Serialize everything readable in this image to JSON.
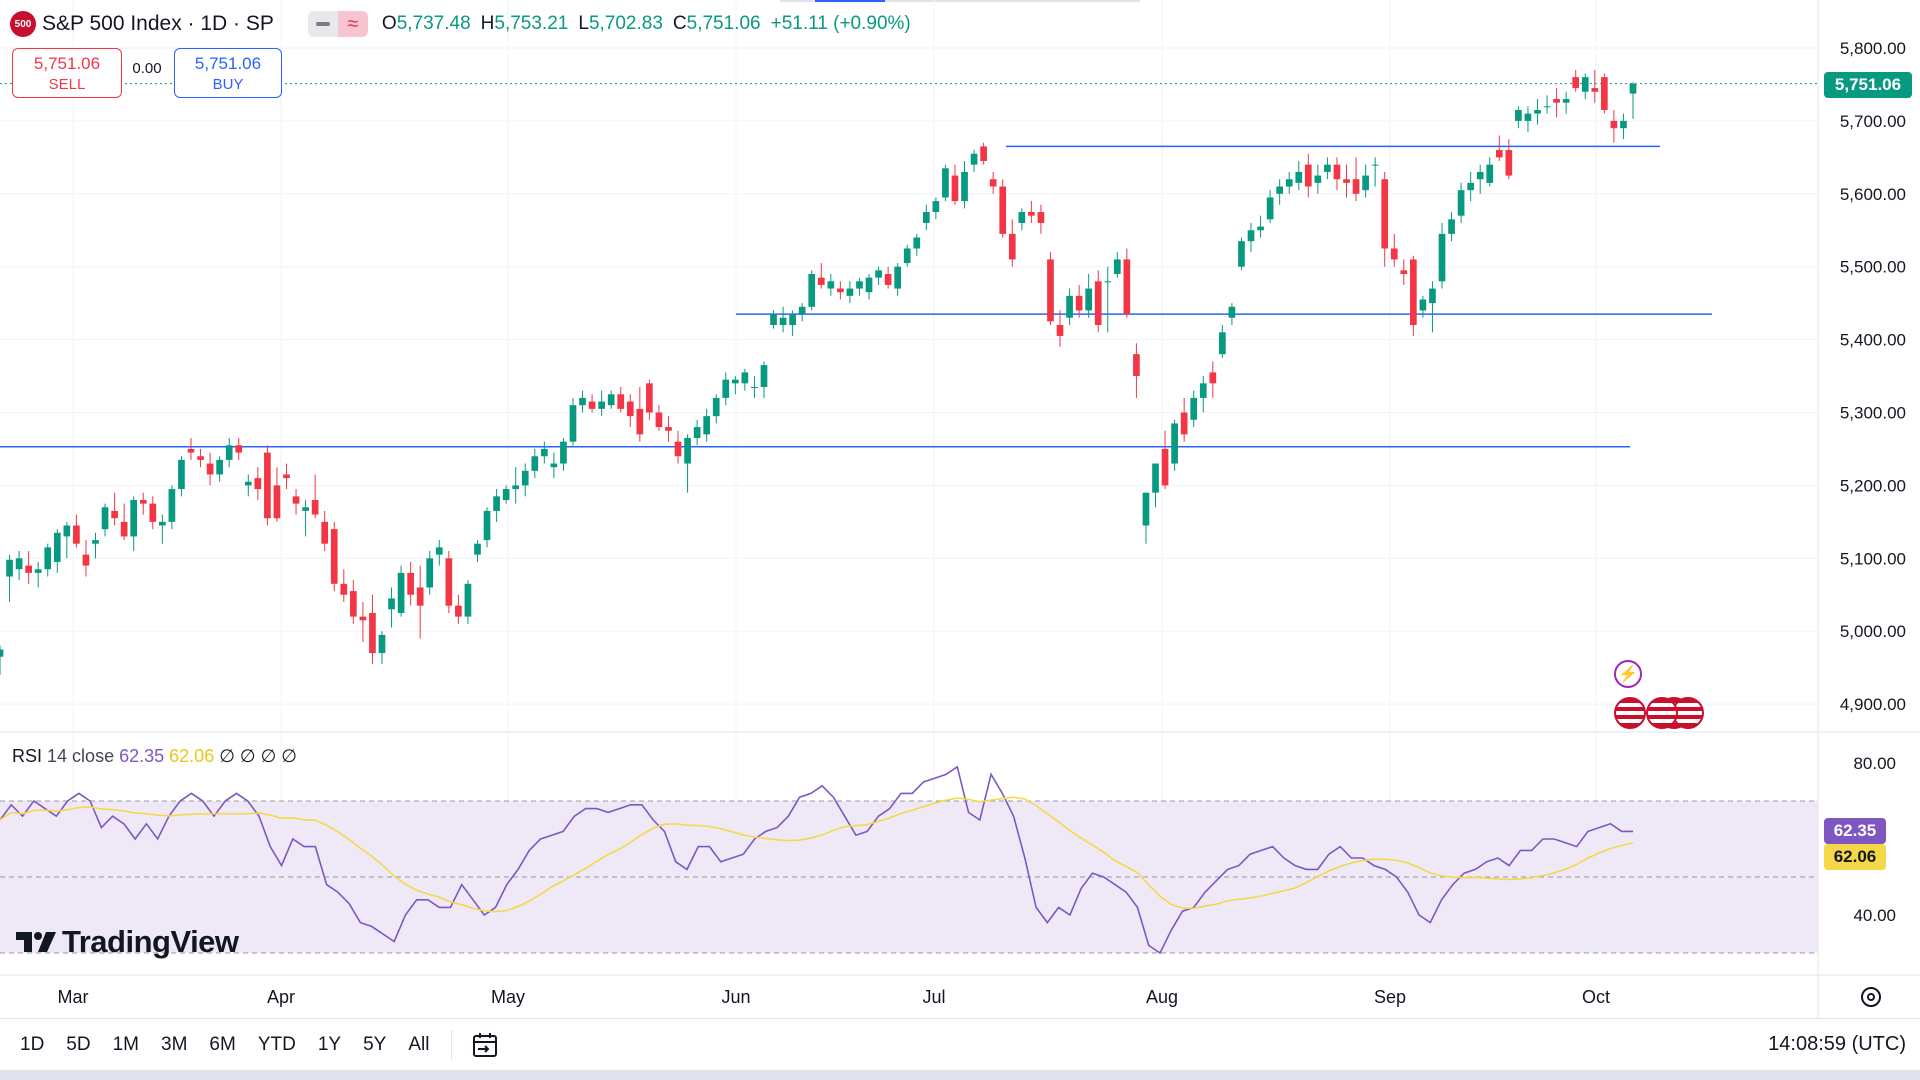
{
  "header": {
    "logo_text": "500",
    "title": "S&P 500 Index · 1D · SP",
    "ohlc": [
      {
        "k": "O",
        "v": "5,737.48"
      },
      {
        "k": "H",
        "v": "5,753.21"
      },
      {
        "k": "L",
        "v": "5,702.83"
      },
      {
        "k": "C",
        "v": "5,751.06"
      },
      {
        "k": "",
        "v": "+51.11 (+0.90%)"
      }
    ]
  },
  "trade": {
    "sell_price": "5,751.06",
    "sell_label": "SELL",
    "spread": "0.00",
    "buy_price": "5,751.06",
    "buy_label": "BUY"
  },
  "price_axis": {
    "labels": [
      "5,800.00",
      "5,700.00",
      "5,600.00",
      "5,500.00",
      "5,400.00",
      "5,300.00",
      "5,200.00",
      "5,100.00",
      "5,000.00",
      "4,900.00"
    ],
    "last_price_label": "5,751.06"
  },
  "rsi": {
    "name": "RSI",
    "params": "14 close",
    "rsi_value": "62.35",
    "ma_value": "62.06",
    "extra": "∅ ∅ ∅ ∅",
    "axis_labels": [
      "80.00",
      "40.00"
    ],
    "rsi_tag": "62.35",
    "ma_tag": "62.06"
  },
  "time_axis": {
    "labels": [
      "Mar",
      "Apr",
      "May",
      "Jun",
      "Jul",
      "Aug",
      "Sep",
      "Oct"
    ]
  },
  "brand": "TradingView",
  "bottom_bar": {
    "timeframes": [
      "1D",
      "5D",
      "1M",
      "3M",
      "6M",
      "YTD",
      "1Y",
      "5Y",
      "All"
    ],
    "clock": "14:08:59 (UTC)"
  },
  "colors": {
    "up": "#089981",
    "down": "#f23645",
    "hline": "#2962ff",
    "rsi": "#7e57c2",
    "rsi_ma": "#f5d848",
    "rsi_band": "#ede7f6"
  },
  "chart_data": {
    "type": "candlestick",
    "title": "S&P 500 Index · 1D · SP",
    "ylim": [
      4850,
      5850
    ],
    "y_ticks": [
      4900,
      5000,
      5100,
      5200,
      5300,
      5400,
      5500,
      5600,
      5700,
      5800
    ],
    "last_price": 5751.06,
    "horizontal_lines": [
      5253,
      5435,
      5665
    ],
    "x_labels": [
      "Mar",
      "Apr",
      "May",
      "Jun",
      "Jul",
      "Aug",
      "Sep",
      "Oct"
    ],
    "ohlc": [
      [
        4965,
        4980,
        4940,
        4975
      ],
      [
        5075,
        5105,
        5040,
        5098
      ],
      [
        5085,
        5110,
        5070,
        5100
      ],
      [
        5090,
        5110,
        5065,
        5080
      ],
      [
        5080,
        5095,
        5060,
        5085
      ],
      [
        5085,
        5120,
        5075,
        5115
      ],
      [
        5095,
        5140,
        5080,
        5135
      ],
      [
        5130,
        5150,
        5100,
        5145
      ],
      [
        5145,
        5160,
        5115,
        5120
      ],
      [
        5105,
        5125,
        5075,
        5090
      ],
      [
        5120,
        5135,
        5100,
        5125
      ],
      [
        5140,
        5175,
        5130,
        5170
      ],
      [
        5165,
        5190,
        5145,
        5155
      ],
      [
        5150,
        5175,
        5125,
        5130
      ],
      [
        5130,
        5185,
        5110,
        5180
      ],
      [
        5180,
        5190,
        5160,
        5175
      ],
      [
        5175,
        5185,
        5140,
        5150
      ],
      [
        5145,
        5160,
        5120,
        5150
      ],
      [
        5150,
        5200,
        5140,
        5195
      ],
      [
        5195,
        5240,
        5185,
        5235
      ],
      [
        5250,
        5265,
        5235,
        5245
      ],
      [
        5240,
        5250,
        5225,
        5235
      ],
      [
        5230,
        5245,
        5200,
        5215
      ],
      [
        5215,
        5240,
        5205,
        5235
      ],
      [
        5235,
        5265,
        5225,
        5255
      ],
      [
        5255,
        5265,
        5235,
        5245
      ],
      [
        5200,
        5215,
        5185,
        5205
      ],
      [
        5210,
        5225,
        5180,
        5195
      ],
      [
        5245,
        5255,
        5145,
        5155
      ],
      [
        5200,
        5225,
        5150,
        5155
      ],
      [
        5215,
        5230,
        5195,
        5210
      ],
      [
        5185,
        5195,
        5160,
        5175
      ],
      [
        5165,
        5180,
        5130,
        5170
      ],
      [
        5180,
        5215,
        5155,
        5160
      ],
      [
        5150,
        5165,
        5110,
        5120
      ],
      [
        5140,
        5150,
        5055,
        5065
      ],
      [
        5065,
        5085,
        5040,
        5050
      ],
      [
        5055,
        5070,
        5010,
        5020
      ],
      [
        5020,
        5040,
        4985,
        5015
      ],
      [
        5025,
        5050,
        4955,
        4970
      ],
      [
        4970,
        5000,
        4955,
        4995
      ],
      [
        5030,
        5060,
        5005,
        5045
      ],
      [
        5025,
        5090,
        5020,
        5080
      ],
      [
        5080,
        5095,
        5035,
        5050
      ],
      [
        5060,
        5090,
        4990,
        5035
      ],
      [
        5060,
        5110,
        5050,
        5100
      ],
      [
        5105,
        5125,
        5090,
        5115
      ],
      [
        5100,
        5110,
        5025,
        5035
      ],
      [
        5035,
        5050,
        5010,
        5020
      ],
      [
        5020,
        5070,
        5010,
        5065
      ],
      [
        5105,
        5125,
        5095,
        5120
      ],
      [
        5125,
        5170,
        5115,
        5165
      ],
      [
        5165,
        5195,
        5150,
        5185
      ],
      [
        5180,
        5200,
        5175,
        5195
      ],
      [
        5195,
        5225,
        5175,
        5200
      ],
      [
        5200,
        5230,
        5185,
        5220
      ],
      [
        5220,
        5250,
        5210,
        5240
      ],
      [
        5240,
        5260,
        5230,
        5250
      ],
      [
        5225,
        5245,
        5210,
        5230
      ],
      [
        5230,
        5265,
        5220,
        5260
      ],
      [
        5260,
        5320,
        5255,
        5310
      ],
      [
        5310,
        5330,
        5300,
        5320
      ],
      [
        5315,
        5325,
        5300,
        5305
      ],
      [
        5305,
        5330,
        5295,
        5315
      ],
      [
        5310,
        5330,
        5305,
        5325
      ],
      [
        5325,
        5335,
        5300,
        5305
      ],
      [
        5315,
        5325,
        5280,
        5295
      ],
      [
        5305,
        5335,
        5260,
        5270
      ],
      [
        5340,
        5345,
        5290,
        5300
      ],
      [
        5300,
        5310,
        5275,
        5280
      ],
      [
        5280,
        5295,
        5260,
        5275
      ],
      [
        5260,
        5275,
        5230,
        5240
      ],
      [
        5230,
        5270,
        5190,
        5265
      ],
      [
        5265,
        5290,
        5255,
        5280
      ],
      [
        5270,
        5305,
        5260,
        5295
      ],
      [
        5295,
        5325,
        5285,
        5320
      ],
      [
        5320,
        5355,
        5310,
        5345
      ],
      [
        5340,
        5350,
        5325,
        5345
      ],
      [
        5340,
        5360,
        5330,
        5355
      ],
      [
        5335,
        5350,
        5320,
        5335
      ],
      [
        5335,
        5370,
        5320,
        5365
      ],
      [
        5420,
        5440,
        5415,
        5435
      ],
      [
        5420,
        5445,
        5410,
        5430
      ],
      [
        5420,
        5440,
        5405,
        5435
      ],
      [
        5435,
        5450,
        5425,
        5445
      ],
      [
        5445,
        5495,
        5440,
        5490
      ],
      [
        5485,
        5505,
        5470,
        5475
      ],
      [
        5470,
        5490,
        5460,
        5480
      ],
      [
        5470,
        5480,
        5455,
        5465
      ],
      [
        5460,
        5480,
        5450,
        5470
      ],
      [
        5470,
        5485,
        5460,
        5480
      ],
      [
        5465,
        5490,
        5455,
        5485
      ],
      [
        5485,
        5500,
        5475,
        5495
      ],
      [
        5490,
        5500,
        5470,
        5475
      ],
      [
        5470,
        5505,
        5460,
        5500
      ],
      [
        5505,
        5530,
        5500,
        5525
      ],
      [
        5525,
        5545,
        5515,
        5540
      ],
      [
        5560,
        5585,
        5550,
        5575
      ],
      [
        5575,
        5595,
        5565,
        5590
      ],
      [
        5595,
        5640,
        5590,
        5635
      ],
      [
        5625,
        5640,
        5585,
        5590
      ],
      [
        5590,
        5645,
        5580,
        5630
      ],
      [
        5640,
        5660,
        5630,
        5655
      ],
      [
        5665,
        5670,
        5640,
        5645
      ],
      [
        5620,
        5630,
        5600,
        5610
      ],
      [
        5610,
        5620,
        5540,
        5545
      ],
      [
        5545,
        5565,
        5500,
        5510
      ],
      [
        5560,
        5580,
        5550,
        5575
      ],
      [
        5575,
        5590,
        5560,
        5570
      ],
      [
        5575,
        5585,
        5545,
        5560
      ],
      [
        5510,
        5520,
        5420,
        5425
      ],
      [
        5420,
        5440,
        5390,
        5405
      ],
      [
        5430,
        5470,
        5420,
        5460
      ],
      [
        5460,
        5475,
        5430,
        5440
      ],
      [
        5440,
        5490,
        5430,
        5470
      ],
      [
        5480,
        5495,
        5410,
        5420
      ],
      [
        5480,
        5500,
        5410,
        5480
      ],
      [
        5490,
        5520,
        5485,
        5510
      ],
      [
        5510,
        5525,
        5430,
        5435
      ],
      [
        5380,
        5395,
        5320,
        5350
      ],
      [
        5145,
        5190,
        5120,
        5190
      ],
      [
        5190,
        5230,
        5170,
        5230
      ],
      [
        5250,
        5275,
        5195,
        5200
      ],
      [
        5230,
        5290,
        5220,
        5285
      ],
      [
        5300,
        5320,
        5260,
        5270
      ],
      [
        5290,
        5330,
        5280,
        5320
      ],
      [
        5320,
        5350,
        5300,
        5340
      ],
      [
        5355,
        5370,
        5320,
        5340
      ],
      [
        5380,
        5420,
        5375,
        5410
      ],
      [
        5430,
        5450,
        5420,
        5445
      ],
      [
        5500,
        5540,
        5495,
        5535
      ],
      [
        5535,
        5560,
        5520,
        5550
      ],
      [
        5550,
        5570,
        5540,
        5555
      ],
      [
        5565,
        5605,
        5560,
        5595
      ],
      [
        5600,
        5620,
        5585,
        5610
      ],
      [
        5610,
        5630,
        5600,
        5620
      ],
      [
        5615,
        5645,
        5605,
        5630
      ],
      [
        5640,
        5655,
        5595,
        5610
      ],
      [
        5615,
        5640,
        5600,
        5625
      ],
      [
        5630,
        5650,
        5620,
        5640
      ],
      [
        5640,
        5650,
        5605,
        5620
      ],
      [
        5620,
        5640,
        5595,
        5615
      ],
      [
        5620,
        5650,
        5590,
        5600
      ],
      [
        5605,
        5640,
        5595,
        5625
      ],
      [
        5640,
        5650,
        5610,
        5640
      ],
      [
        5620,
        5630,
        5500,
        5525
      ],
      [
        5525,
        5545,
        5500,
        5510
      ],
      [
        5495,
        5510,
        5475,
        5490
      ],
      [
        5510,
        5515,
        5405,
        5420
      ],
      [
        5440,
        5460,
        5430,
        5455
      ],
      [
        5450,
        5480,
        5410,
        5470
      ],
      [
        5480,
        5560,
        5470,
        5545
      ],
      [
        5545,
        5575,
        5535,
        5565
      ],
      [
        5570,
        5615,
        5560,
        5605
      ],
      [
        5605,
        5630,
        5590,
        5615
      ],
      [
        5620,
        5640,
        5600,
        5630
      ],
      [
        5615,
        5650,
        5610,
        5640
      ],
      [
        5660,
        5680,
        5645,
        5650
      ],
      [
        5660,
        5675,
        5620,
        5625
      ],
      [
        5700,
        5720,
        5690,
        5715
      ],
      [
        5700,
        5720,
        5685,
        5710
      ],
      [
        5710,
        5730,
        5695,
        5715
      ],
      [
        5720,
        5735,
        5710,
        5720
      ],
      [
        5730,
        5745,
        5705,
        5725
      ],
      [
        5725,
        5740,
        5710,
        5730
      ],
      [
        5760,
        5770,
        5740,
        5745
      ],
      [
        5740,
        5765,
        5730,
        5760
      ],
      [
        5745,
        5770,
        5725,
        5740
      ],
      [
        5760,
        5765,
        5710,
        5715
      ],
      [
        5700,
        5715,
        5670,
        5690
      ],
      [
        5690,
        5710,
        5675,
        5700
      ],
      [
        5737.48,
        5753.21,
        5702.83,
        5751.06
      ]
    ],
    "rsi": [
      65,
      69,
      66,
      70,
      68,
      66,
      70,
      72,
      70,
      63,
      66,
      64,
      60,
      64,
      60,
      66,
      70,
      72,
      70,
      66,
      70,
      72,
      70,
      66,
      58,
      53,
      60,
      58,
      58,
      48,
      46,
      43,
      38,
      37,
      35,
      33,
      40,
      44,
      44,
      42,
      42,
      48,
      44,
      40,
      42,
      48,
      52,
      57,
      60,
      61,
      62,
      66,
      68,
      68,
      67,
      68,
      69,
      69,
      65,
      62,
      54,
      52,
      58,
      58,
      54,
      55,
      56,
      60,
      62,
      63,
      66,
      71,
      72,
      74,
      71,
      66,
      61,
      62,
      66,
      68,
      72,
      72,
      75,
      76,
      77,
      79,
      67,
      65,
      77,
      72,
      66,
      55,
      42,
      38,
      42,
      40,
      47,
      51,
      50,
      48,
      46,
      42,
      32,
      30,
      36,
      41,
      42,
      46,
      49,
      52,
      53,
      56,
      57,
      58,
      55,
      53,
      52,
      52,
      56,
      58,
      55,
      55,
      53,
      52,
      50,
      46,
      40,
      38,
      44,
      48,
      51,
      52,
      54,
      55,
      53,
      57,
      57,
      60,
      60,
      59,
      58,
      62,
      63,
      64,
      62,
      62
    ]
  }
}
